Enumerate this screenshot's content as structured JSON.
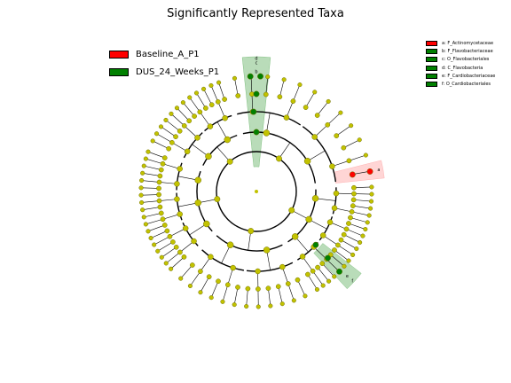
{
  "title": "Significantly Represented Taxa",
  "colors": {
    "group_a": "#ff0000",
    "group_b": "#008000",
    "node": "#c2c200",
    "node_edge": "#6e6e00",
    "highlight_a": "#ffb3b3",
    "highlight_b": "#80c080"
  },
  "legend_groups": [
    {
      "label": "Baseline_A_P1",
      "color": "#ff0000"
    },
    {
      "label": "DUS_24_Weeks_P1",
      "color": "#008000"
    }
  ],
  "legend_clades": [
    {
      "label": "a: F_Actinomycetaceae",
      "color": "#ff0000"
    },
    {
      "label": "b: F_Flavobacteriaceae",
      "color": "#008000"
    },
    {
      "label": "c: O_Flavobacteriales",
      "color": "#008000"
    },
    {
      "label": "d: C_Flavobacteria",
      "color": "#008000"
    },
    {
      "label": "e: F_Cardiobacteriaceae",
      "color": "#008000"
    },
    {
      "label": "f: O_Cardiobacteriales",
      "color": "#008000"
    }
  ],
  "clade_letters": [
    {
      "letter": "a",
      "group": "Baseline_A_P1"
    },
    {
      "letter": "b",
      "group": "DUS_24_Weeks_P1"
    },
    {
      "letter": "c",
      "group": "DUS_24_Weeks_P1"
    },
    {
      "letter": "d",
      "group": "DUS_24_Weeks_P1"
    },
    {
      "letter": "e",
      "group": "DUS_24_Weeks_P1"
    },
    {
      "letter": "f",
      "group": "DUS_24_Weeks_P1"
    }
  ]
}
